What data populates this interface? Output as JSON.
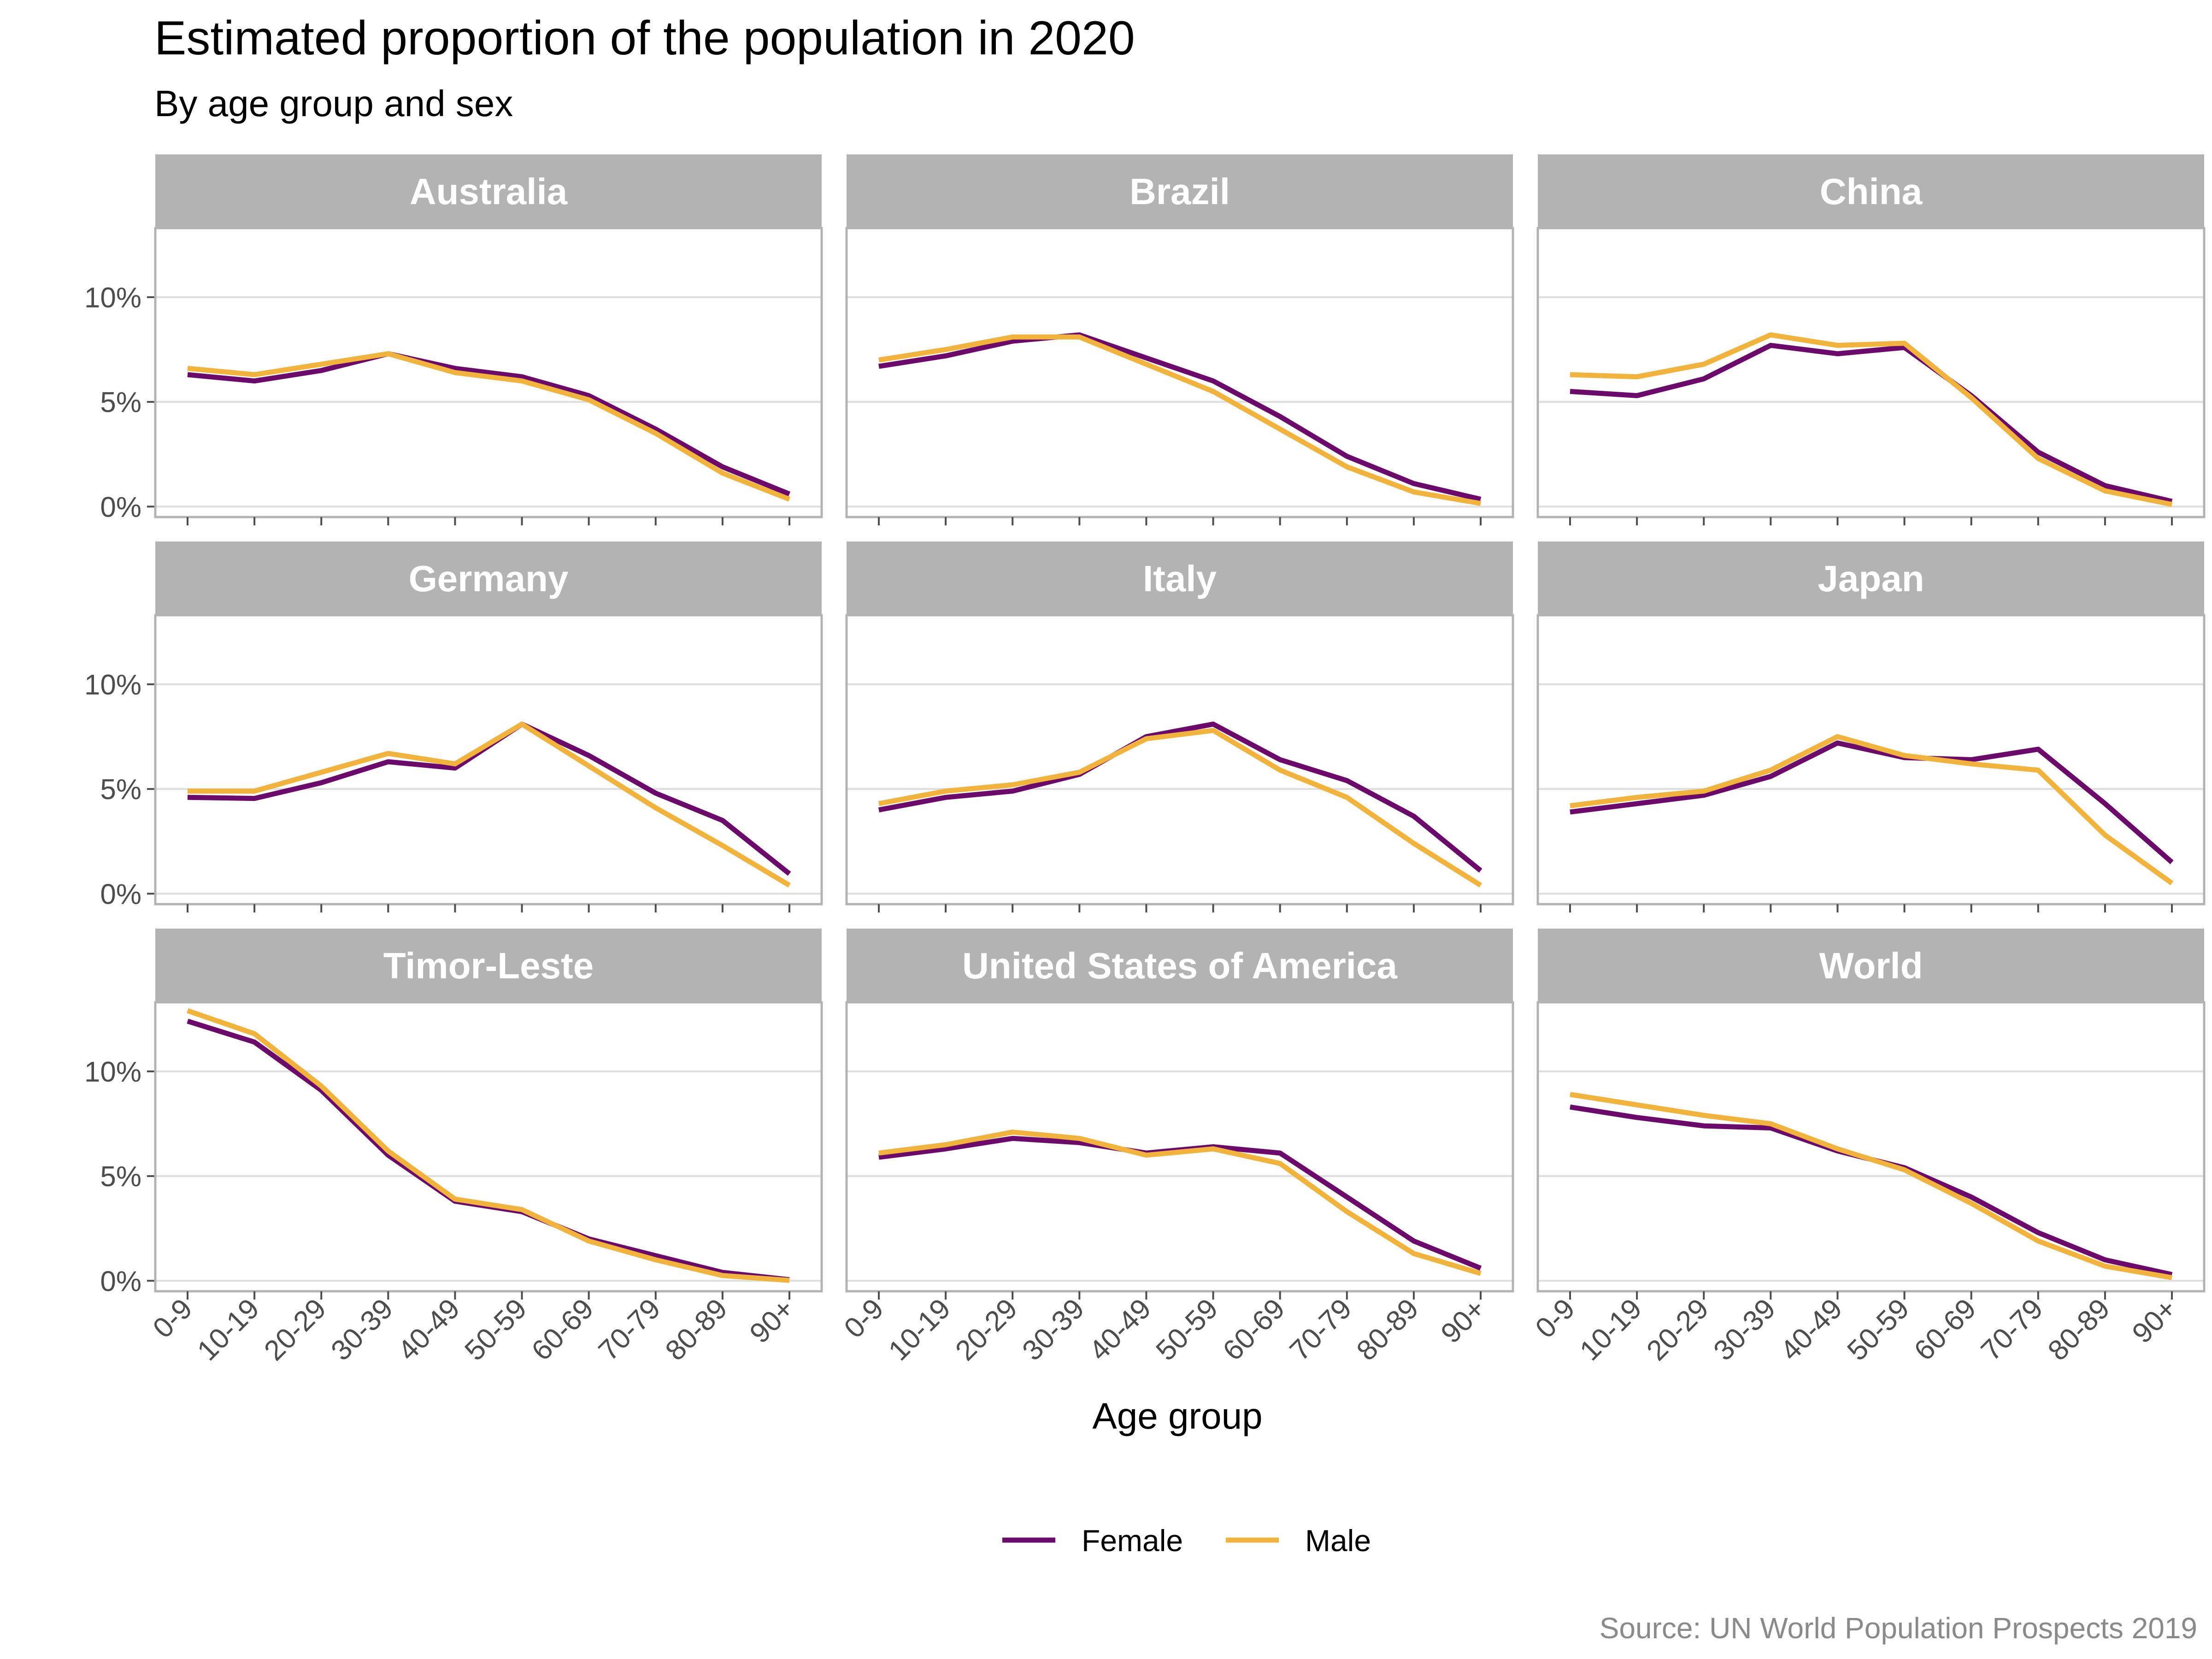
{
  "chart_data": {
    "type": "line",
    "title": "Estimated proportion of the population in 2020",
    "subtitle": "By age group and sex",
    "xlabel": "Age group",
    "ylabel": "",
    "caption": "Source: UN World Population Prospects 2019",
    "categories": [
      "0-9",
      "10-19",
      "20-29",
      "30-39",
      "40-49",
      "50-59",
      "60-69",
      "70-79",
      "80-89",
      "90+"
    ],
    "y_ticks": [
      0,
      5,
      10
    ],
    "y_tick_labels": [
      "0%",
      "5%",
      "10%"
    ],
    "ylim": [
      -0.5,
      13.3
    ],
    "grid": true,
    "legend": {
      "position": "bottom",
      "entries": [
        "Female",
        "Male"
      ]
    },
    "colors": {
      "Female": "#6b0a6b",
      "Male": "#f2b33d",
      "strip": "#b3b3b3",
      "grid": "#dedede",
      "frame": "#b3b3b3"
    },
    "panels": [
      {
        "name": "Australia",
        "series": [
          {
            "name": "Female",
            "values": [
              6.3,
              6.0,
              6.5,
              7.3,
              6.6,
              6.2,
              5.3,
              3.7,
              1.9,
              0.6
            ]
          },
          {
            "name": "Male",
            "values": [
              6.6,
              6.3,
              6.8,
              7.3,
              6.4,
              6.0,
              5.1,
              3.5,
              1.6,
              0.35
            ]
          }
        ]
      },
      {
        "name": "Brazil",
        "series": [
          {
            "name": "Female",
            "values": [
              6.7,
              7.2,
              7.9,
              8.2,
              7.1,
              6.0,
              4.3,
              2.4,
              1.1,
              0.35
            ]
          },
          {
            "name": "Male",
            "values": [
              7.0,
              7.5,
              8.1,
              8.1,
              6.8,
              5.5,
              3.7,
              1.9,
              0.7,
              0.15
            ]
          }
        ]
      },
      {
        "name": "China",
        "series": [
          {
            "name": "Female",
            "values": [
              5.5,
              5.3,
              6.1,
              7.7,
              7.3,
              7.6,
              5.3,
              2.6,
              1.0,
              0.25
            ]
          },
          {
            "name": "Male",
            "values": [
              6.3,
              6.2,
              6.8,
              8.2,
              7.7,
              7.8,
              5.2,
              2.3,
              0.75,
              0.1
            ]
          }
        ]
      },
      {
        "name": "Germany",
        "series": [
          {
            "name": "Female",
            "values": [
              4.6,
              4.55,
              5.3,
              6.3,
              6.0,
              8.1,
              6.6,
              4.8,
              3.5,
              0.95
            ]
          },
          {
            "name": "Male",
            "values": [
              4.9,
              4.9,
              5.8,
              6.7,
              6.2,
              8.1,
              6.1,
              4.1,
              2.3,
              0.4
            ]
          }
        ]
      },
      {
        "name": "Italy",
        "series": [
          {
            "name": "Female",
            "values": [
              4.0,
              4.6,
              4.9,
              5.7,
              7.5,
              8.1,
              6.4,
              5.4,
              3.7,
              1.1
            ]
          },
          {
            "name": "Male",
            "values": [
              4.3,
              4.9,
              5.2,
              5.8,
              7.4,
              7.8,
              5.9,
              4.6,
              2.4,
              0.4
            ]
          }
        ]
      },
      {
        "name": "Japan",
        "series": [
          {
            "name": "Female",
            "values": [
              3.9,
              4.3,
              4.7,
              5.6,
              7.2,
              6.5,
              6.4,
              6.9,
              4.3,
              1.5
            ]
          },
          {
            "name": "Male",
            "values": [
              4.2,
              4.6,
              4.9,
              5.9,
              7.5,
              6.6,
              6.2,
              5.9,
              2.8,
              0.5
            ]
          }
        ]
      },
      {
        "name": "Timor-Leste",
        "series": [
          {
            "name": "Female",
            "values": [
              12.4,
              11.4,
              9.1,
              6.0,
              3.8,
              3.3,
              2.0,
              1.2,
              0.4,
              0.05
            ]
          },
          {
            "name": "Male",
            "values": [
              12.9,
              11.8,
              9.3,
              6.2,
              3.9,
              3.4,
              1.9,
              1.0,
              0.25,
              0.02
            ]
          }
        ]
      },
      {
        "name": "United States of America",
        "series": [
          {
            "name": "Female",
            "values": [
              5.9,
              6.3,
              6.8,
              6.6,
              6.1,
              6.4,
              6.1,
              4.0,
              1.9,
              0.6
            ]
          },
          {
            "name": "Male",
            "values": [
              6.1,
              6.5,
              7.1,
              6.8,
              6.0,
              6.3,
              5.6,
              3.3,
              1.3,
              0.35
            ]
          }
        ]
      },
      {
        "name": "World",
        "series": [
          {
            "name": "Female",
            "values": [
              8.3,
              7.8,
              7.4,
              7.3,
              6.2,
              5.4,
              4.0,
              2.3,
              1.0,
              0.3
            ]
          },
          {
            "name": "Male",
            "values": [
              8.9,
              8.4,
              7.9,
              7.5,
              6.3,
              5.3,
              3.7,
              1.9,
              0.7,
              0.15
            ]
          }
        ]
      }
    ]
  }
}
